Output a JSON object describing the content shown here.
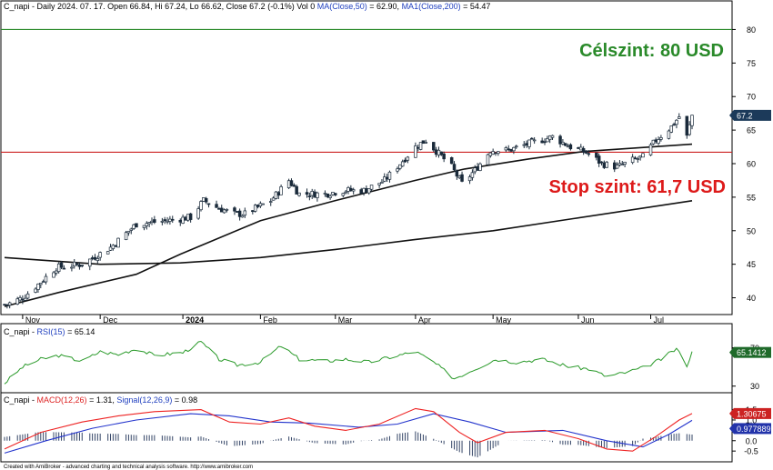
{
  "main_panel": {
    "header": {
      "ticker_info": "C_napi - Daily 2024. 07. 17. Open 66.84, Hi 67.24, Lo 66.62, Close 67.2 (-0.1%) Vol 0",
      "ma50_label": "MA(Close,50)",
      "ma50_value": " = 62.90,",
      "ma200_label": "MA1(Close,200)",
      "ma200_value": " = 54.47"
    },
    "target_label": "Célszint: 80 USD",
    "stop_label": "Stop szint: 61,7 USD",
    "last_price_badge": "67.2",
    "y_ticks": [
      "40",
      "45",
      "50",
      "55",
      "60",
      "65",
      "70",
      "75",
      "80"
    ],
    "x_ticks": [
      "Nov",
      "Dec",
      "2024",
      "Feb",
      "Mar",
      "Apr",
      "May",
      "Jun",
      "Jul"
    ]
  },
  "rsi_panel": {
    "header_prefix": "C_napi - ",
    "rsi_label": "RSI(15)",
    "rsi_value": " = 65.14",
    "badge": "65.1412",
    "y_ticks": [
      "30",
      "70"
    ]
  },
  "macd_panel": {
    "header_prefix": "C_napi - ",
    "macd_label": "MACD(12,26)",
    "macd_value": " = 1.31, ",
    "signal_label": "Signal(12,26,9)",
    "signal_value": " = 0.98",
    "macd_badge": "1.30675",
    "signal_badge": "0.977889",
    "y_ticks": [
      "1.5",
      "1.0",
      "0.5",
      "0.0",
      "-0.5"
    ]
  },
  "footer": "Created with AmiBroker - advanced charting and technical analysis software. http://www.amibroker.com",
  "colors": {
    "target_line": "#2a8a2a",
    "stop_line": "#cc2222",
    "candle_up": "#ffffff",
    "candle_down": "#1a2a3a",
    "ma": "#111111",
    "rsi": "#2a9a2a",
    "macd": "#ee2222",
    "signal": "#2233cc",
    "hist": "#334466",
    "badge_bg": "#1c3a5a"
  },
  "chart_data": [
    {
      "type": "candlestick",
      "title": "C_napi - Daily",
      "ylim": [
        37.5,
        82.5
      ],
      "x_start": "2023-10-25",
      "x_end": "2024-07-17",
      "close_keyframes": [
        {
          "x": "2023-10-26",
          "y": 39.0
        },
        {
          "x": "2023-11-01",
          "y": 40.0
        },
        {
          "x": "2023-11-07",
          "y": 42.0
        },
        {
          "x": "2023-11-14",
          "y": 44.5
        },
        {
          "x": "2023-11-24",
          "y": 45.0
        },
        {
          "x": "2023-12-05",
          "y": 47.5
        },
        {
          "x": "2023-12-15",
          "y": 51.0
        },
        {
          "x": "2023-12-27",
          "y": 51.5
        },
        {
          "x": "2024-01-05",
          "y": 52.0
        },
        {
          "x": "2024-01-10",
          "y": 54.5
        },
        {
          "x": "2024-01-15",
          "y": 53.5
        },
        {
          "x": "2024-01-22",
          "y": 52.5
        },
        {
          "x": "2024-01-26",
          "y": 52.5
        },
        {
          "x": "2024-02-05",
          "y": 54.5
        },
        {
          "x": "2024-02-12",
          "y": 57.5
        },
        {
          "x": "2024-02-16",
          "y": 55.5
        },
        {
          "x": "2024-02-26",
          "y": 55.5
        },
        {
          "x": "2024-03-04",
          "y": 56.0
        },
        {
          "x": "2024-03-12",
          "y": 56.0
        },
        {
          "x": "2024-03-20",
          "y": 57.5
        },
        {
          "x": "2024-03-26",
          "y": 60.0
        },
        {
          "x": "2024-04-01",
          "y": 62.5
        },
        {
          "x": "2024-04-05",
          "y": 63.5
        },
        {
          "x": "2024-04-10",
          "y": 61.5
        },
        {
          "x": "2024-04-15",
          "y": 59.5
        },
        {
          "x": "2024-04-19",
          "y": 57.0
        },
        {
          "x": "2024-04-24",
          "y": 59.0
        },
        {
          "x": "2024-04-30",
          "y": 62.0
        },
        {
          "x": "2024-05-07",
          "y": 62.0
        },
        {
          "x": "2024-05-15",
          "y": 63.0
        },
        {
          "x": "2024-05-24",
          "y": 64.0
        },
        {
          "x": "2024-05-31",
          "y": 62.5
        },
        {
          "x": "2024-06-07",
          "y": 61.5
        },
        {
          "x": "2024-06-12",
          "y": 60.0
        },
        {
          "x": "2024-06-18",
          "y": 59.5
        },
        {
          "x": "2024-06-24",
          "y": 60.5
        },
        {
          "x": "2024-06-28",
          "y": 61.0
        },
        {
          "x": "2024-07-03",
          "y": 63.5
        },
        {
          "x": "2024-07-09",
          "y": 65.5
        },
        {
          "x": "2024-07-12",
          "y": 67.0
        },
        {
          "x": "2024-07-15",
          "y": 64.0
        },
        {
          "x": "2024-07-17",
          "y": 67.2
        }
      ],
      "ma50": [
        {
          "x": "2023-10-25",
          "y": 38.7
        },
        {
          "x": "2023-11-15",
          "y": 40.8
        },
        {
          "x": "2023-12-15",
          "y": 43.5
        },
        {
          "x": "2024-01-01",
          "y": 46.5
        },
        {
          "x": "2024-02-01",
          "y": 51.5
        },
        {
          "x": "2024-03-01",
          "y": 54.5
        },
        {
          "x": "2024-04-01",
          "y": 57.5
        },
        {
          "x": "2024-04-20",
          "y": 59.2
        },
        {
          "x": "2024-05-15",
          "y": 60.7
        },
        {
          "x": "2024-06-05",
          "y": 61.8
        },
        {
          "x": "2024-07-17",
          "y": 62.9
        }
      ],
      "ma200": [
        {
          "x": "2023-10-25",
          "y": 46.0
        },
        {
          "x": "2023-12-01",
          "y": 45.0
        },
        {
          "x": "2024-01-01",
          "y": 45.2
        },
        {
          "x": "2024-02-01",
          "y": 46.0
        },
        {
          "x": "2024-03-01",
          "y": 47.2
        },
        {
          "x": "2024-04-01",
          "y": 48.7
        },
        {
          "x": "2024-05-01",
          "y": 50.0
        },
        {
          "x": "2024-06-01",
          "y": 51.8
        },
        {
          "x": "2024-07-17",
          "y": 54.47
        }
      ],
      "horizontal_levels": [
        {
          "y": 80,
          "label": "Célszint: 80 USD"
        },
        {
          "y": 61.7,
          "label": "Stop szint: 61,7 USD"
        }
      ]
    },
    {
      "type": "line",
      "title": "RSI(15)",
      "ylim": [
        25,
        80
      ],
      "series": [
        {
          "name": "RSI(15)",
          "points": [
            {
              "x": "2023-10-25",
              "y": 33
            },
            {
              "x": "2023-11-01",
              "y": 50
            },
            {
              "x": "2023-11-08",
              "y": 58
            },
            {
              "x": "2023-11-15",
              "y": 62
            },
            {
              "x": "2023-11-24",
              "y": 56
            },
            {
              "x": "2023-12-01",
              "y": 66
            },
            {
              "x": "2023-12-08",
              "y": 63
            },
            {
              "x": "2023-12-15",
              "y": 69
            },
            {
              "x": "2023-12-22",
              "y": 62
            },
            {
              "x": "2024-01-02",
              "y": 65
            },
            {
              "x": "2024-01-09",
              "y": 76
            },
            {
              "x": "2024-01-16",
              "y": 58
            },
            {
              "x": "2024-01-23",
              "y": 52
            },
            {
              "x": "2024-02-01",
              "y": 55
            },
            {
              "x": "2024-02-09",
              "y": 72
            },
            {
              "x": "2024-02-16",
              "y": 58
            },
            {
              "x": "2024-02-26",
              "y": 56
            },
            {
              "x": "2024-03-05",
              "y": 58
            },
            {
              "x": "2024-03-14",
              "y": 55
            },
            {
              "x": "2024-03-22",
              "y": 60
            },
            {
              "x": "2024-04-01",
              "y": 66
            },
            {
              "x": "2024-04-08",
              "y": 55
            },
            {
              "x": "2024-04-16",
              "y": 38
            },
            {
              "x": "2024-04-24",
              "y": 48
            },
            {
              "x": "2024-05-02",
              "y": 58
            },
            {
              "x": "2024-05-10",
              "y": 55
            },
            {
              "x": "2024-05-20",
              "y": 58
            },
            {
              "x": "2024-05-31",
              "y": 50
            },
            {
              "x": "2024-06-07",
              "y": 48
            },
            {
              "x": "2024-06-14",
              "y": 40
            },
            {
              "x": "2024-06-21",
              "y": 44
            },
            {
              "x": "2024-06-28",
              "y": 49
            },
            {
              "x": "2024-07-05",
              "y": 58
            },
            {
              "x": "2024-07-11",
              "y": 69
            },
            {
              "x": "2024-07-15",
              "y": 52
            },
            {
              "x": "2024-07-17",
              "y": 65.14
            }
          ]
        }
      ]
    },
    {
      "type": "line",
      "title": "MACD(12,26)",
      "ylim": [
        -0.8,
        1.7
      ],
      "series": [
        {
          "name": "MACD(12,26)",
          "points": [
            {
              "x": "2023-10-25",
              "y": -0.4
            },
            {
              "x": "2023-11-08",
              "y": 0.4
            },
            {
              "x": "2023-11-24",
              "y": 0.9
            },
            {
              "x": "2023-12-08",
              "y": 1.2
            },
            {
              "x": "2023-12-22",
              "y": 1.4
            },
            {
              "x": "2024-01-09",
              "y": 1.5
            },
            {
              "x": "2024-01-20",
              "y": 0.9
            },
            {
              "x": "2024-02-01",
              "y": 0.8
            },
            {
              "x": "2024-02-12",
              "y": 1.1
            },
            {
              "x": "2024-02-22",
              "y": 0.7
            },
            {
              "x": "2024-03-05",
              "y": 0.5
            },
            {
              "x": "2024-03-18",
              "y": 0.8
            },
            {
              "x": "2024-04-01",
              "y": 1.55
            },
            {
              "x": "2024-04-08",
              "y": 1.4
            },
            {
              "x": "2024-04-18",
              "y": 0.4
            },
            {
              "x": "2024-04-25",
              "y": -0.1
            },
            {
              "x": "2024-05-06",
              "y": 0.4
            },
            {
              "x": "2024-05-21",
              "y": 0.5
            },
            {
              "x": "2024-06-03",
              "y": 0.1
            },
            {
              "x": "2024-06-14",
              "y": -0.4
            },
            {
              "x": "2024-06-24",
              "y": -0.5
            },
            {
              "x": "2024-07-03",
              "y": 0.2
            },
            {
              "x": "2024-07-12",
              "y": 1.0
            },
            {
              "x": "2024-07-17",
              "y": 1.31
            }
          ]
        },
        {
          "name": "Signal(12,26,9)",
          "points": [
            {
              "x": "2023-10-25",
              "y": -0.6
            },
            {
              "x": "2023-11-10",
              "y": 0.0
            },
            {
              "x": "2023-11-28",
              "y": 0.6
            },
            {
              "x": "2023-12-15",
              "y": 1.0
            },
            {
              "x": "2024-01-05",
              "y": 1.3
            },
            {
              "x": "2024-01-20",
              "y": 1.2
            },
            {
              "x": "2024-02-05",
              "y": 0.9
            },
            {
              "x": "2024-02-20",
              "y": 0.85
            },
            {
              "x": "2024-03-10",
              "y": 0.65
            },
            {
              "x": "2024-03-25",
              "y": 0.8
            },
            {
              "x": "2024-04-08",
              "y": 1.3
            },
            {
              "x": "2024-04-22",
              "y": 0.9
            },
            {
              "x": "2024-05-06",
              "y": 0.4
            },
            {
              "x": "2024-05-28",
              "y": 0.5
            },
            {
              "x": "2024-06-14",
              "y": 0.0
            },
            {
              "x": "2024-06-28",
              "y": -0.3
            },
            {
              "x": "2024-07-08",
              "y": 0.3
            },
            {
              "x": "2024-07-17",
              "y": 0.98
            }
          ]
        }
      ]
    }
  ]
}
